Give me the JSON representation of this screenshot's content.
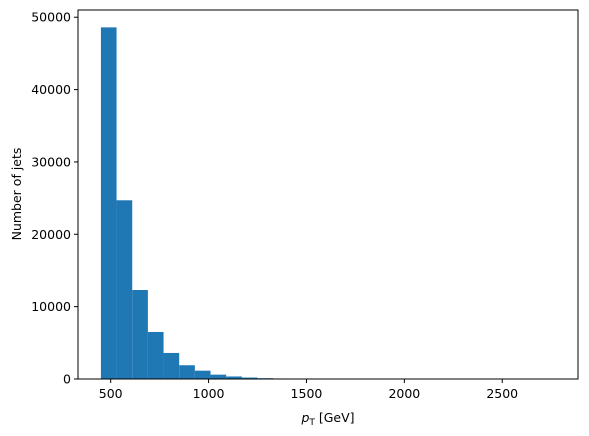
{
  "chart_data": {
    "type": "bar",
    "histogram": true,
    "bar_color": "#1f77b4",
    "bin_start": 450,
    "bin_width": 80,
    "values": [
      48600,
      24700,
      12300,
      6500,
      3600,
      1900,
      1150,
      600,
      350,
      200,
      110,
      70,
      40,
      20,
      12,
      8,
      5,
      4,
      3,
      2,
      2,
      1,
      1,
      1,
      1,
      1,
      1,
      1,
      1
    ],
    "xlim": [
      333,
      2887
    ],
    "ylim": [
      0,
      51000
    ],
    "xticks": [
      500,
      1000,
      1500,
      2000,
      2500
    ],
    "xtick_labels": [
      "500",
      "1000",
      "1500",
      "2000",
      "2500"
    ],
    "yticks": [
      0,
      10000,
      20000,
      30000,
      40000,
      50000
    ],
    "ytick_labels": [
      "0",
      "10000",
      "20000",
      "30000",
      "40000",
      "50000"
    ],
    "xlabel_symbol": "p",
    "xlabel_subscript": "T",
    "xlabel_unit": " [GeV]",
    "ylabel": "Number of jets",
    "title": "",
    "grid": false
  }
}
